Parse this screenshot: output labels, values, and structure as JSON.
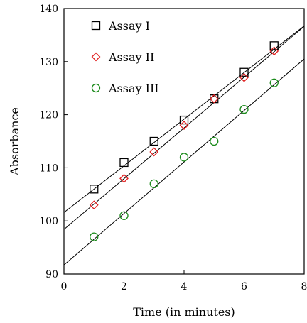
{
  "chart_data": {
    "type": "scatter",
    "xlabel": "Time (in minutes)",
    "ylabel": "Absorbance",
    "xlim": [
      0,
      8
    ],
    "ylim": [
      90,
      140
    ],
    "xticks": [
      0,
      2,
      4,
      6,
      8
    ],
    "yticks": [
      90,
      100,
      110,
      120,
      130,
      140
    ],
    "grid": false,
    "legend_position": "top-left",
    "series": [
      {
        "name": "Assay I",
        "marker": "square",
        "color": "#000000",
        "x": [
          1,
          2,
          3,
          4,
          5,
          6,
          7
        ],
        "y": [
          106,
          111,
          115,
          119,
          123,
          128,
          133
        ],
        "fit": {
          "intercept": 101.6,
          "slope": 4.39
        }
      },
      {
        "name": "Assay II",
        "marker": "diamond",
        "color": "#e02020",
        "x": [
          1,
          2,
          3,
          4,
          5,
          6,
          7
        ],
        "y": [
          103,
          108,
          113,
          118,
          123,
          127,
          132
        ],
        "fit": {
          "intercept": 98.4,
          "slope": 4.78
        }
      },
      {
        "name": "Assay III",
        "marker": "circle",
        "color": "#1a8a1a",
        "x": [
          1,
          2,
          3,
          4,
          5,
          6,
          7
        ],
        "y": [
          97,
          101,
          107,
          112,
          115,
          121,
          126
        ],
        "fit": {
          "intercept": 91.7,
          "slope": 4.85
        }
      }
    ]
  }
}
